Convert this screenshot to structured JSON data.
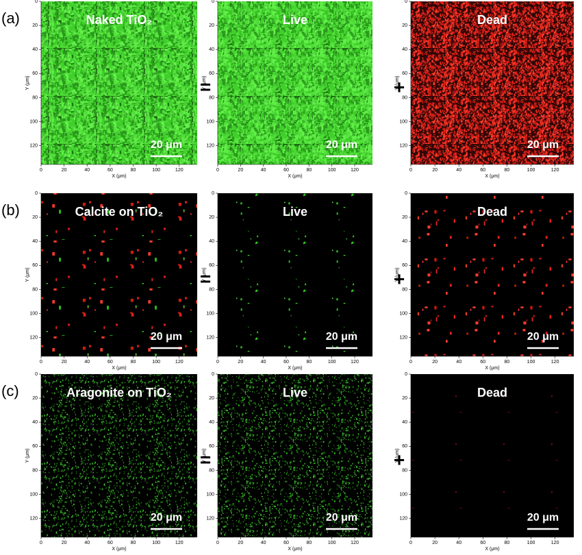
{
  "rows": [
    {
      "label": "(a)",
      "panels": [
        "Naked TiO₂",
        "Live",
        "Dead"
      ],
      "operators": [
        "=",
        "+"
      ]
    },
    {
      "label": "(b)",
      "panels": [
        "Calcite on TiO₂",
        "Live",
        "Dead"
      ],
      "operators": [
        "=",
        "+"
      ]
    },
    {
      "label": "(c)",
      "panels": [
        "Aragonite on TiO₂",
        "Live",
        "Dead"
      ],
      "operators": [
        "=",
        "+"
      ]
    }
  ],
  "axis": {
    "ticks": [
      0,
      20,
      40,
      60,
      80,
      100,
      120
    ],
    "x_label": "X (μm)",
    "y_label": "Y (μm)",
    "scale_bar": "20 μm"
  }
}
